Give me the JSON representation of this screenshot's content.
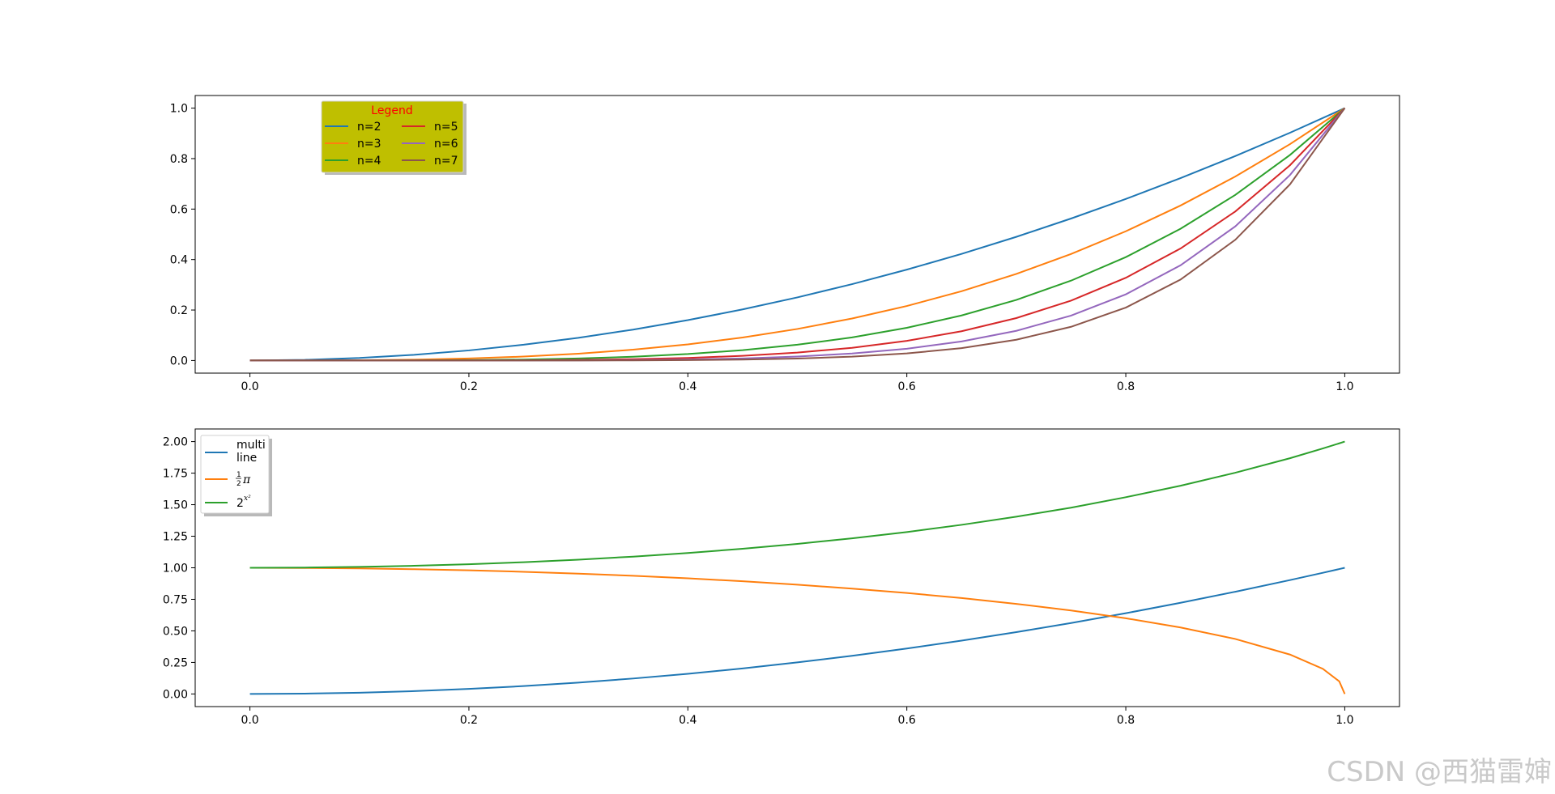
{
  "chart_data": [
    {
      "type": "line",
      "title": "",
      "xlabel": "",
      "ylabel": "",
      "xlim": [
        -0.05,
        1.05
      ],
      "ylim": [
        -0.05,
        1.05
      ],
      "xticks": [
        "0.0",
        "0.2",
        "0.4",
        "0.6",
        "0.8",
        "1.0"
      ],
      "yticks": [
        "0.0",
        "0.2",
        "0.4",
        "0.6",
        "0.8",
        "1.0"
      ],
      "x": [
        0,
        0.05,
        0.1,
        0.15,
        0.2,
        0.25,
        0.3,
        0.35,
        0.4,
        0.45,
        0.5,
        0.55,
        0.6,
        0.65,
        0.7,
        0.75,
        0.8,
        0.85,
        0.9,
        0.95,
        1.0
      ],
      "series": [
        {
          "name": "n=2",
          "color": "#1f77b4",
          "values": [
            0,
            0.0025,
            0.01,
            0.0225,
            0.04,
            0.0625,
            0.09,
            0.1225,
            0.16,
            0.2025,
            0.25,
            0.3025,
            0.36,
            0.4225,
            0.49,
            0.5625,
            0.64,
            0.7225,
            0.81,
            0.9025,
            1.0
          ]
        },
        {
          "name": "n=3",
          "color": "#ff7f0e",
          "values": [
            0,
            0.0001,
            0.001,
            0.0034,
            0.008,
            0.0156,
            0.027,
            0.0429,
            0.064,
            0.0911,
            0.125,
            0.1664,
            0.216,
            0.2746,
            0.343,
            0.4219,
            0.512,
            0.6141,
            0.729,
            0.8574,
            1.0
          ]
        },
        {
          "name": "n=4",
          "color": "#2ca02c",
          "values": [
            0,
            0.0,
            0.0001,
            0.0005,
            0.0016,
            0.0039,
            0.0081,
            0.015,
            0.0256,
            0.041,
            0.0625,
            0.0915,
            0.1296,
            0.1785,
            0.2401,
            0.3164,
            0.4096,
            0.522,
            0.6561,
            0.8145,
            1.0
          ]
        },
        {
          "name": "n=5",
          "color": "#d62728",
          "values": [
            0,
            0.0,
            0.0,
            0.0001,
            0.0003,
            0.001,
            0.0024,
            0.0053,
            0.0102,
            0.0185,
            0.0313,
            0.0503,
            0.0778,
            0.116,
            0.1681,
            0.2373,
            0.3277,
            0.4437,
            0.5905,
            0.7738,
            1.0
          ]
        },
        {
          "name": "n=6",
          "color": "#9467bd",
          "values": [
            0,
            0.0,
            0.0,
            0.0,
            0.0001,
            0.0002,
            0.0007,
            0.0018,
            0.0041,
            0.0083,
            0.0156,
            0.0277,
            0.0467,
            0.0754,
            0.1176,
            0.178,
            0.2621,
            0.3771,
            0.5314,
            0.7351,
            1.0
          ]
        },
        {
          "name": "n=7",
          "color": "#8c564b",
          "values": [
            0,
            0.0,
            0.0,
            0.0,
            0.0,
            0.0001,
            0.0002,
            0.0006,
            0.0016,
            0.0037,
            0.0078,
            0.0152,
            0.028,
            0.049,
            0.0824,
            0.1335,
            0.2097,
            0.3206,
            0.4783,
            0.6983,
            1.0
          ]
        }
      ],
      "legend": {
        "title": "Legend",
        "title_color": "#ff0000",
        "facecolor": "#bfbf00",
        "placement": "upper-left",
        "columns": 2
      }
    },
    {
      "type": "line",
      "title": "",
      "xlabel": "",
      "ylabel": "",
      "xlim": [
        -0.05,
        1.05
      ],
      "ylim": [
        -0.1,
        2.1
      ],
      "xticks": [
        "0.0",
        "0.2",
        "0.4",
        "0.6",
        "0.8",
        "1.0"
      ],
      "yticks": [
        "0.00",
        "0.25",
        "0.50",
        "0.75",
        "1.00",
        "1.25",
        "1.50",
        "1.75",
        "2.00"
      ],
      "x": [
        0,
        0.05,
        0.1,
        0.15,
        0.2,
        0.25,
        0.3,
        0.35,
        0.4,
        0.45,
        0.5,
        0.55,
        0.6,
        0.65,
        0.7,
        0.75,
        0.8,
        0.85,
        0.9,
        0.95,
        0.98,
        0.995,
        1.0
      ],
      "series": [
        {
          "name_lines": [
            "multi",
            "line"
          ],
          "color": "#1f77b4",
          "values": [
            0,
            0.0025,
            0.01,
            0.0225,
            0.04,
            0.0625,
            0.09,
            0.1225,
            0.16,
            0.2025,
            0.25,
            0.3025,
            0.36,
            0.4225,
            0.49,
            0.5625,
            0.64,
            0.7225,
            0.81,
            0.9025,
            0.9604,
            0.99,
            1.0
          ]
        },
        {
          "name_frac": [
            "1",
            "2"
          ],
          "name_tail": "π",
          "color": "#ff7f0e",
          "values": [
            1,
            0.9987,
            0.995,
            0.9887,
            0.9798,
            0.9682,
            0.9539,
            0.9368,
            0.9165,
            0.893,
            0.866,
            0.8352,
            0.8,
            0.7599,
            0.7141,
            0.6614,
            0.6,
            0.5268,
            0.4359,
            0.3122,
            0.199,
            0.0999,
            0.0
          ]
        },
        {
          "name_base": "2",
          "name_sup": "x²",
          "color": "#2ca02c",
          "values": [
            1,
            1.0017,
            1.007,
            1.0157,
            1.0281,
            1.0443,
            1.0644,
            1.0886,
            1.1173,
            1.1506,
            1.1892,
            1.2335,
            1.2834,
            1.3404,
            1.4049,
            1.4765,
            1.5592,
            1.6502,
            1.7532,
            1.8683,
            1.9454,
            1.9862,
            2.0
          ]
        }
      ],
      "legend": {
        "facecolor": "#ffffff",
        "placement": "upper-left",
        "columns": 1
      }
    }
  ],
  "watermark": "CSDN @西猫雷婶"
}
